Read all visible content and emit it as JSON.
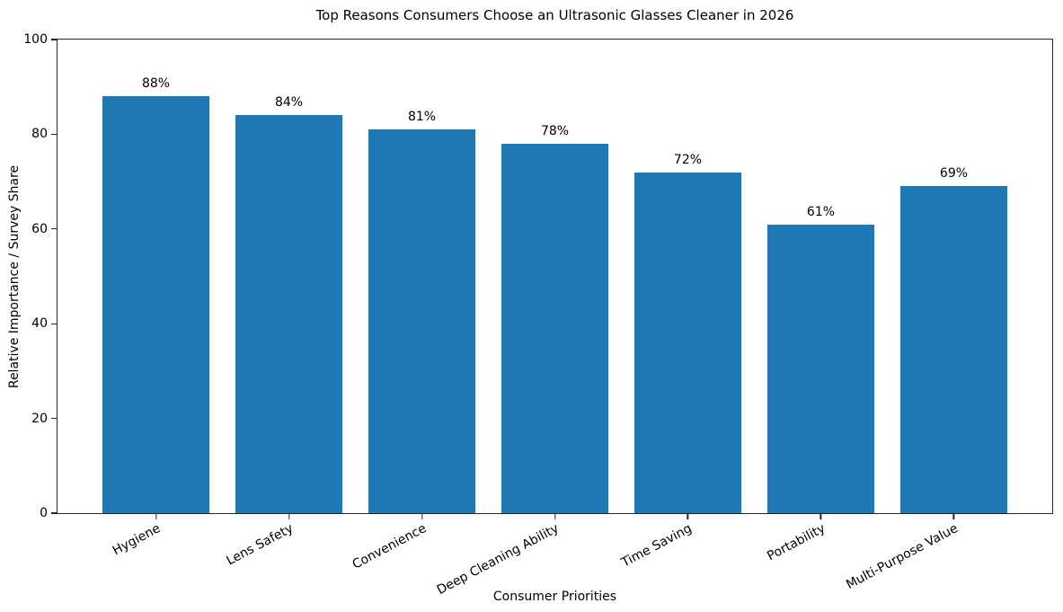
{
  "chart_data": {
    "type": "bar",
    "title": "Top Reasons Consumers Choose an Ultrasonic Glasses Cleaner in 2026",
    "xlabel": "Consumer Priorities",
    "ylabel": "Relative Importance / Survey Share",
    "categories": [
      "Hygiene",
      "Lens Safety",
      "Convenience",
      "Deep Cleaning Ability",
      "Time Saving",
      "Portability",
      "Multi-Purpose Value"
    ],
    "values": [
      88,
      84,
      81,
      78,
      72,
      61,
      69
    ],
    "value_labels": [
      "88%",
      "84%",
      "81%",
      "78%",
      "72%",
      "61%",
      "69%"
    ],
    "ylim": [
      0,
      100
    ],
    "yticks": [
      0,
      20,
      40,
      60,
      80,
      100
    ],
    "ytick_labels": [
      "0",
      "20",
      "40",
      "60",
      "80",
      "100"
    ],
    "bar_color": "#1f77b4",
    "grid": false,
    "legend": null
  }
}
